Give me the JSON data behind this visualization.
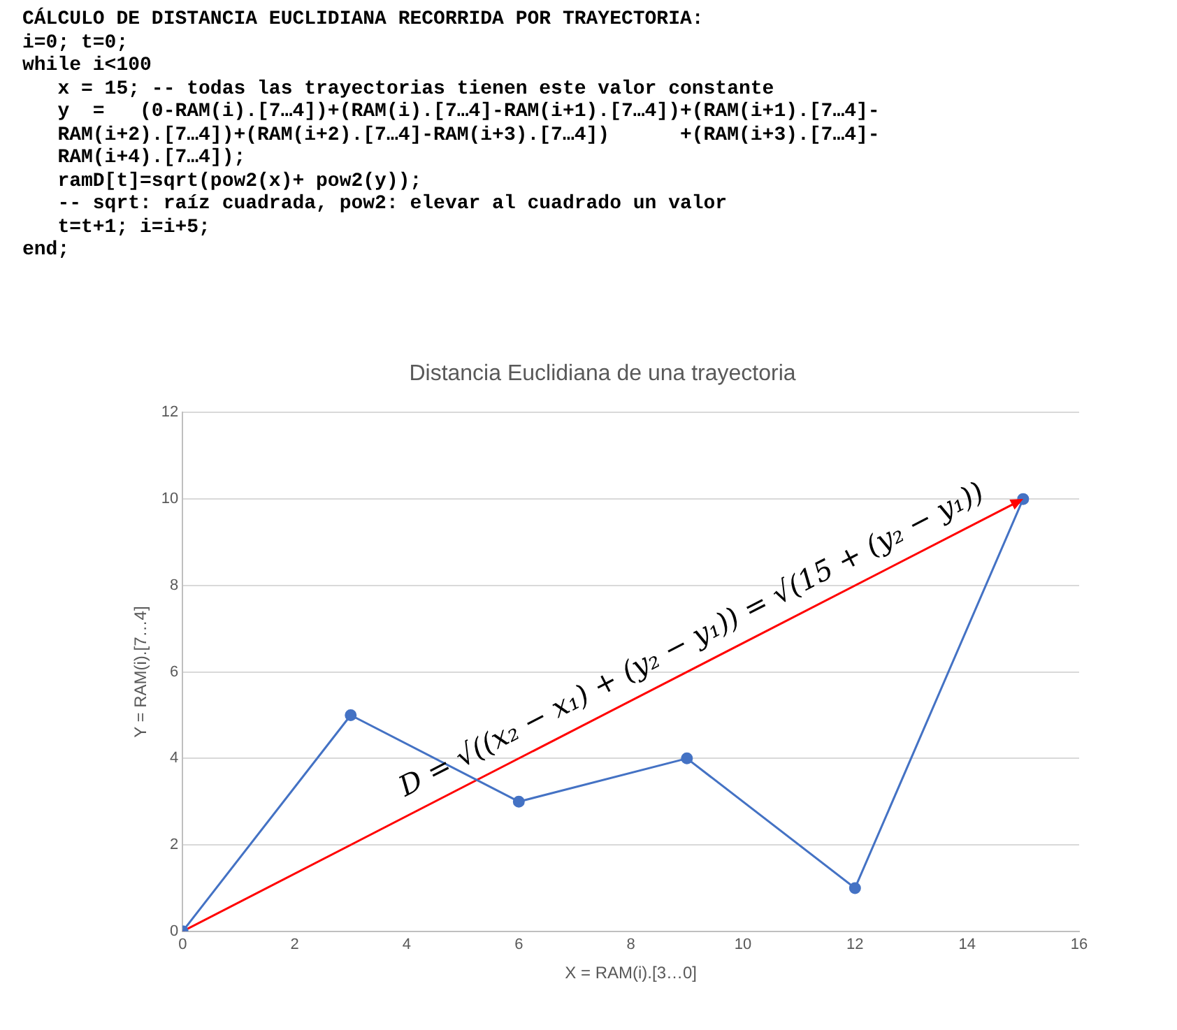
{
  "chart_data": {
    "type": "line",
    "title": "Distancia Euclidiana de una trayectoria",
    "xlabel": "X = RAM(i).[3…0]",
    "ylabel": "Y = RAM(i).[7…4]",
    "x": [
      0,
      3,
      6,
      9,
      12,
      15
    ],
    "series": [
      {
        "color": "#4472c4",
        "values": [
          0,
          5,
          3,
          4,
          1,
          10
        ],
        "marker": "circle"
      },
      {
        "color": "#ff0000",
        "x": [
          0,
          15
        ],
        "values": [
          0,
          10
        ],
        "marker": "none"
      }
    ],
    "xlim": [
      0,
      16
    ],
    "xticks": [
      0,
      2,
      4,
      6,
      8,
      10,
      12,
      14,
      16
    ],
    "ylim": [
      0,
      12
    ],
    "yticks": [
      0,
      2,
      4,
      6,
      8,
      10,
      12
    ],
    "grid": "y",
    "legend": false,
    "annotations": [
      "CÁLCULO DE DISTANCIA EUCLIDIANA RECORRIDA POR TRAYECTORIA:",
      "i=0; t=0;",
      "while i<100",
      "   x = 15; -- todas las trayectorias tienen este valor constante",
      "   y  =   (0-RAM(i).[7…4])+(RAM(i).[7…4]-RAM(i+1).[7…4])+(RAM(i+1).[7…4]-",
      "   RAM(i+2).[7…4])+(RAM(i+2).[7…4]-RAM(i+3).[7…4])      +(RAM(i+3).[7…4]-",
      "   RAM(i+4).[7…4]);",
      "   ramD[t]=sqrt(pow2(x)+ pow2(y));",
      "   -- sqrt: raíz cuadrada, pow2: elevar al cuadrado un valor",
      "   t=t+1; i=i+5;",
      "end;",
      "D = √((x₂ − x₁) + (y₂ − y₁)) = √(15 + (y₂ − y₁))"
    ]
  }
}
